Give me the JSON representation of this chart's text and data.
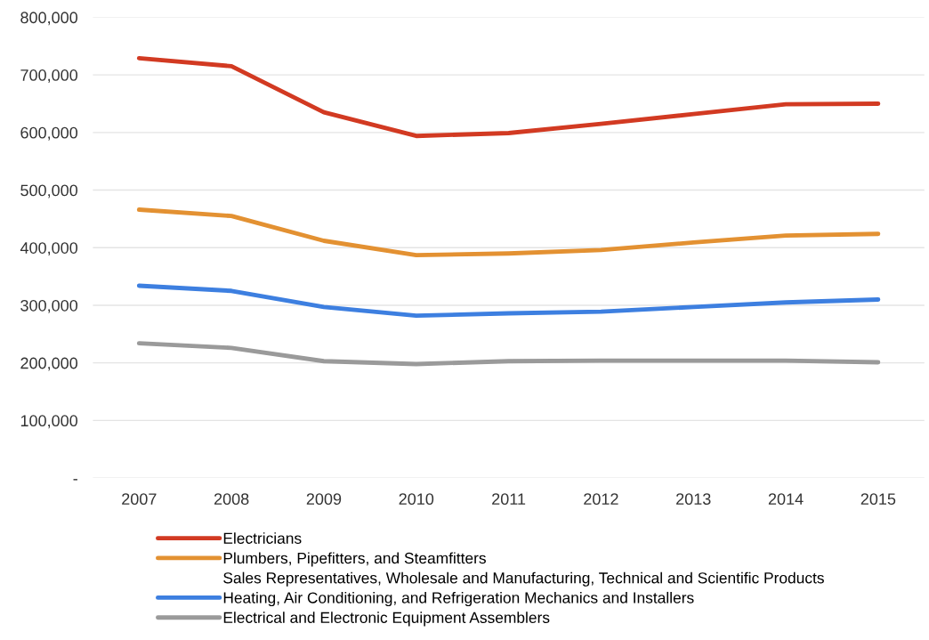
{
  "chart_data": {
    "type": "line",
    "categories": [
      "2007",
      "2008",
      "2009",
      "2010",
      "2011",
      "2012",
      "2013",
      "2014",
      "2015"
    ],
    "series": [
      {
        "name": "Electricians",
        "color": "#d23a22",
        "values": [
          729000,
          715000,
          635000,
          594000,
          599000,
          615000,
          632000,
          649000,
          650000
        ]
      },
      {
        "name": "Plumbers, Pipefitters, and Steamfitters",
        "color": "#e39132",
        "values": [
          466000,
          455000,
          412000,
          387000,
          390000,
          396000,
          409000,
          421000,
          424000
        ]
      },
      {
        "name": "Sales Representatives, Wholesale and Manufacturing, Technical and Scientific Products",
        "values": [
          null,
          null,
          null,
          null,
          null,
          null,
          null,
          null,
          null
        ]
      },
      {
        "name": "Heating, Air Conditioning, and Refrigeration Mechanics and Installers",
        "color": "#3d7fe0",
        "values": [
          334000,
          325000,
          297000,
          282000,
          286000,
          289000,
          297000,
          305000,
          310000
        ]
      },
      {
        "name": "Electrical and Electronic Equipment Assemblers",
        "color": "#9a9a9a",
        "values": [
          234000,
          226000,
          203000,
          198000,
          203000,
          204000,
          204000,
          204000,
          201000
        ]
      }
    ],
    "ylim": [
      0,
      800000
    ],
    "yticks": [
      {
        "value": 0,
        "label": "-"
      },
      {
        "value": 100000,
        "label": "100,000"
      },
      {
        "value": 200000,
        "label": "200,000"
      },
      {
        "value": 300000,
        "label": "300,000"
      },
      {
        "value": 400000,
        "label": "400,000"
      },
      {
        "value": 500000,
        "label": "500,000"
      },
      {
        "value": 600000,
        "label": "600,000"
      },
      {
        "value": 700000,
        "label": "700,000"
      },
      {
        "value": 800000,
        "label": "800,000"
      }
    ],
    "grid": "y",
    "legend": "bottom",
    "marker": "none",
    "line_style": "solid"
  }
}
